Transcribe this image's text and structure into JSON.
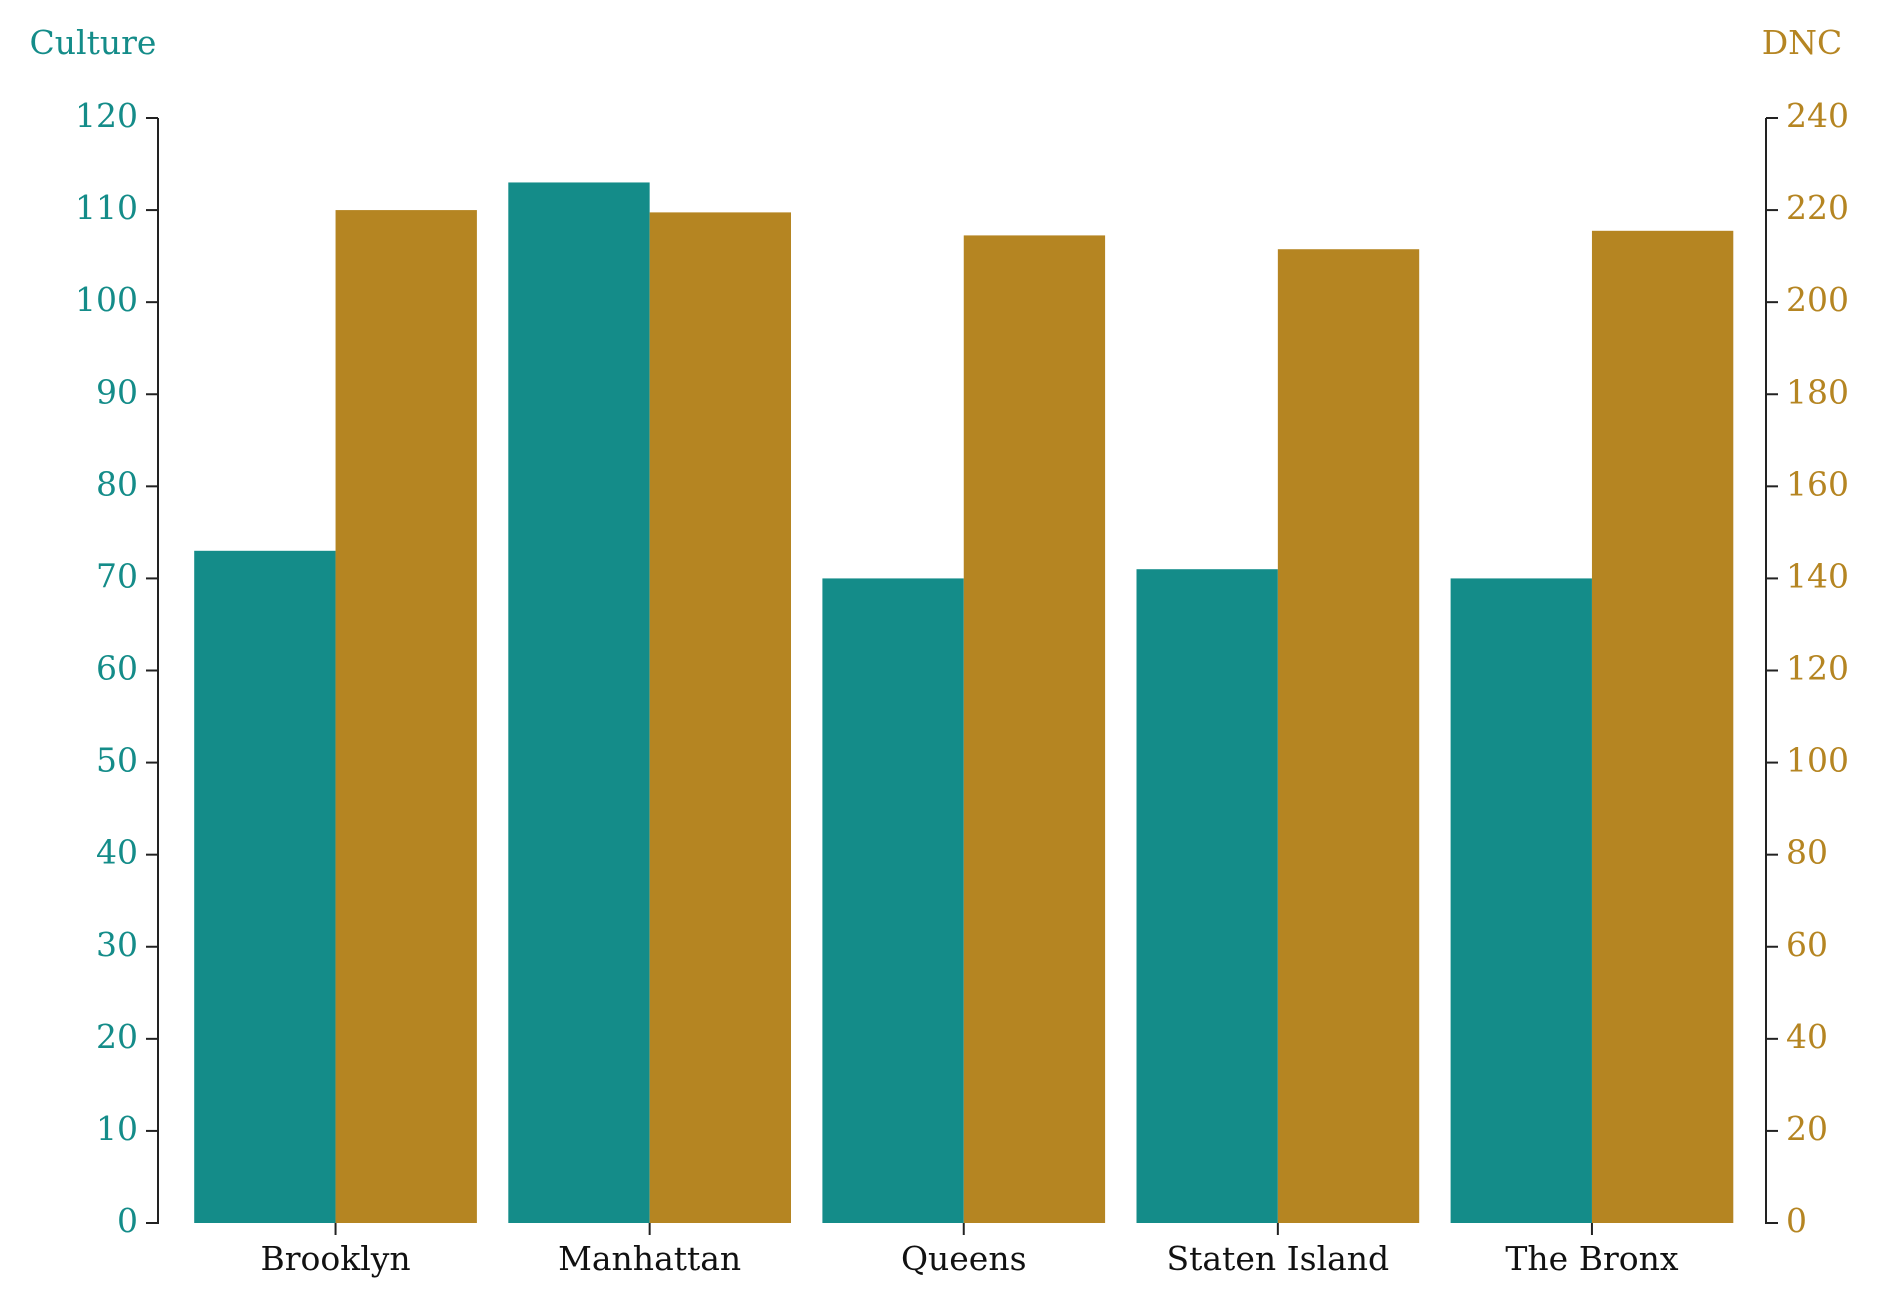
{
  "chart_data": {
    "type": "bar",
    "categories": [
      "Brooklyn",
      "Manhattan",
      "Queens",
      "Staten Island",
      "The Bronx"
    ],
    "y_label": "Culture",
    "y2_label": "DNC",
    "series": [
      {
        "name": "Culture",
        "color": "#148c89",
        "values": [
          73,
          113,
          70,
          71,
          70
        ]
      },
      {
        "name": "DNC",
        "color": "#b58522",
        "axis": "y2",
        "values": [
          220,
          219.5,
          214.5,
          211.5,
          215.5
        ]
      }
    ],
    "ylim": [
      0,
      120
    ],
    "yticks": [
      0,
      10,
      20,
      30,
      40,
      50,
      60,
      70,
      80,
      90,
      100,
      110,
      120
    ],
    "y2lim": [
      0,
      240
    ],
    "y2ticks": [
      0,
      20,
      40,
      60,
      80,
      100,
      120,
      140,
      160,
      180,
      200,
      220,
      240
    ]
  }
}
